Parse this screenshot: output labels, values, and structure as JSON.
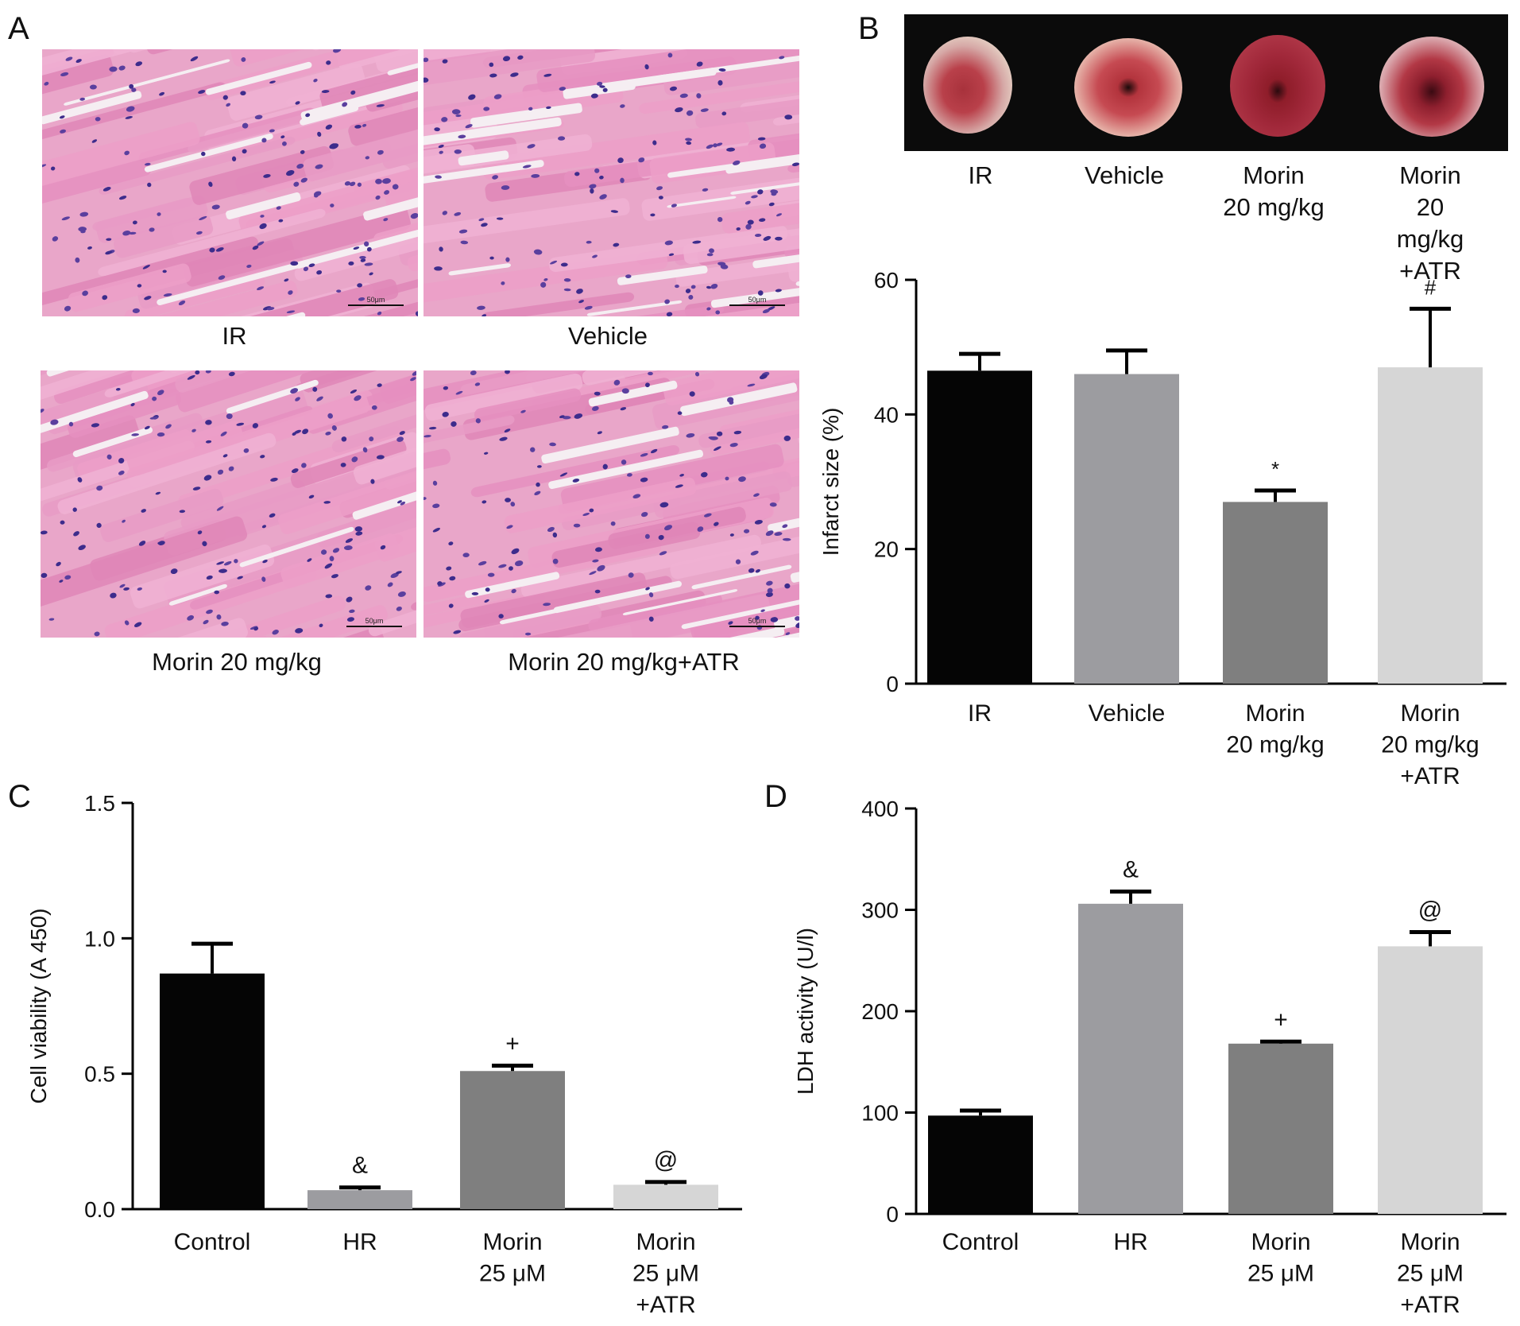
{
  "panels": {
    "A": {
      "letter": "A",
      "images": [
        {
          "label": "IR",
          "scale_text": "50μm"
        },
        {
          "label": "Vehicle",
          "scale_text": "50μm"
        },
        {
          "label": "Morin 20 mg/kg",
          "scale_text": "50μm"
        },
        {
          "label": "Morin 20 mg/kg+ATR",
          "scale_text": "50μm"
        }
      ]
    },
    "B": {
      "letter": "B",
      "photo_labels": [
        "IR",
        "Vehicle",
        "Morin\n20 mg/kg",
        "Morin\n20 mg/kg\n+ATR"
      ]
    },
    "C": {
      "letter": "C"
    },
    "D": {
      "letter": "D"
    }
  },
  "chart_data": [
    {
      "id": "B",
      "type": "bar",
      "categories": [
        "IR",
        "Vehicle",
        "Morin\n20 mg/kg",
        "Morin\n20 mg/kg\n+ATR"
      ],
      "values": [
        46.5,
        46.0,
        27.0,
        47.0
      ],
      "errors": [
        2.5,
        3.5,
        1.7,
        8.7
      ],
      "annotations": [
        "",
        "",
        "*",
        "#"
      ],
      "colors": [
        "#050505",
        "#9c9ca0",
        "#7f7f7f",
        "#d6d6d6"
      ],
      "ylabel": "Infarct size (%)",
      "ylim": [
        0,
        60
      ],
      "yticks": [
        0,
        20,
        40,
        60
      ],
      "ytick_labels": [
        "0",
        "20",
        "40",
        "60"
      ]
    },
    {
      "id": "C",
      "type": "bar",
      "categories": [
        "Control",
        "HR",
        "Morin\n25 μM",
        "Morin\n25 μM\n+ATR"
      ],
      "values": [
        0.87,
        0.07,
        0.51,
        0.09
      ],
      "errors": [
        0.11,
        0.01,
        0.02,
        0.01
      ],
      "annotations": [
        "",
        "&",
        "+",
        "@"
      ],
      "colors": [
        "#050505",
        "#9c9ca0",
        "#7f7f7f",
        "#d6d6d6"
      ],
      "ylabel": "Cell viability (A 450)",
      "ylim": [
        0,
        1.5
      ],
      "yticks": [
        0,
        0.5,
        1.0,
        1.5
      ],
      "ytick_labels": [
        "0.0",
        "0.5",
        "1.0",
        "1.5"
      ]
    },
    {
      "id": "D",
      "type": "bar",
      "categories": [
        "Control",
        "HR",
        "Morin\n25 μM",
        "Morin\n25 μM\n+ATR"
      ],
      "values": [
        97,
        306,
        168,
        264
      ],
      "errors": [
        5,
        12,
        2,
        14
      ],
      "annotations": [
        "",
        "&",
        "+",
        "@"
      ],
      "colors": [
        "#050505",
        "#9c9ca0",
        "#7f7f7f",
        "#d6d6d6"
      ],
      "ylabel": "LDH activity (U/l)",
      "ylim": [
        0,
        400
      ],
      "yticks": [
        0,
        100,
        200,
        300,
        400
      ],
      "ytick_labels": [
        "0",
        "100",
        "200",
        "300",
        "400"
      ]
    }
  ]
}
